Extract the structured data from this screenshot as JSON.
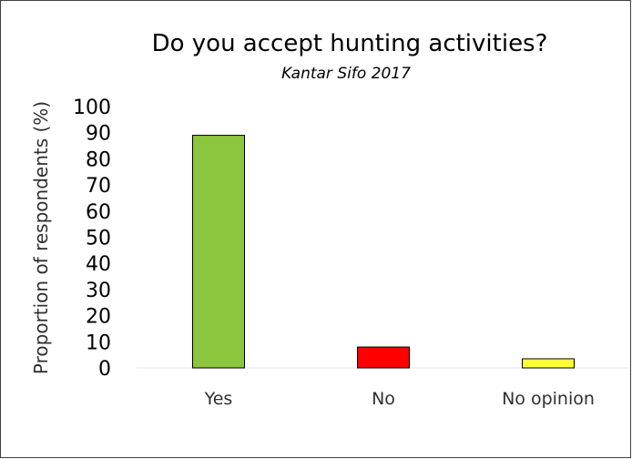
{
  "chart_data": {
    "type": "bar",
    "title": "Do you accept hunting activities?",
    "subtitle": "Kantar Sifo 2017",
    "ylabel": "Proportion of respondents (%)",
    "xlabel": "",
    "categories": [
      "Yes",
      "No",
      "No opinion"
    ],
    "values": [
      89,
      8,
      3.5
    ],
    "colors": [
      "#8cc63f",
      "#ff0000",
      "#ffff33"
    ],
    "ylim": [
      0,
      100
    ],
    "yticks": [
      "100",
      "90",
      "80",
      "70",
      "60",
      "50",
      "40",
      "30",
      "20",
      "10",
      "0"
    ],
    "grid": false,
    "legend": "none"
  }
}
